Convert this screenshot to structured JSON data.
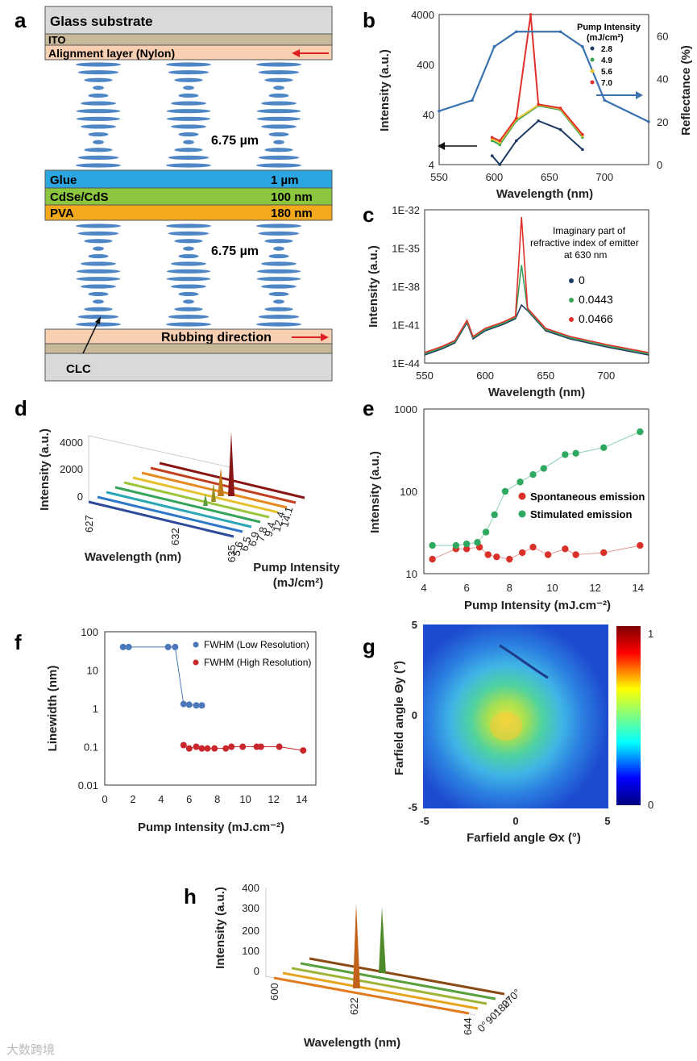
{
  "panels": {
    "a": {
      "label": "a",
      "layers": {
        "glass": "Glass substrate",
        "ito": "ITO",
        "align": "Alignment layer (Nylon)",
        "glue": "Glue",
        "glue_t": "1 µm",
        "cdse": "CdSe/CdS",
        "cdse_t": "100 nm",
        "pva": "PVA",
        "pva_t": "180 nm",
        "rub": "Rubbing direction",
        "clc": "CLC",
        "d1": "6.75 µm",
        "d2": "6.75 µm"
      }
    },
    "b": {
      "label": "b",
      "ylabel": "Intensity (a.u.)",
      "ylabel2": "Reflectance (%)",
      "xlabel": "Wavelength (nm)",
      "legend_title": "Pump Intensity",
      "legend_unit": "(mJ/cm²)",
      "legend": [
        "2.8",
        "4.9",
        "5.6",
        "7.0"
      ],
      "colors": [
        "#1f3b63",
        "#3aa35a",
        "#e6c12f",
        "#e0302a"
      ],
      "yticks": [
        "4000",
        "400",
        "40",
        "4"
      ],
      "y2ticks": [
        "60",
        "40",
        "20",
        "0"
      ],
      "xticks": [
        "550",
        "600",
        "650",
        "700"
      ]
    },
    "c": {
      "label": "c",
      "ylabel": "Intensity (a.u.)",
      "xlabel": "Wavelength (nm)",
      "note1": "Imaginary part of",
      "note2": "refractive index of emitter",
      "note3": "at 630 nm",
      "legend": [
        "0",
        "0.0443",
        "0.0466"
      ],
      "yticks": [
        "1E-32",
        "1E-35",
        "1E-38",
        "1E-41",
        "1E-44"
      ],
      "xticks": [
        "550",
        "600",
        "650",
        "700"
      ]
    },
    "d": {
      "label": "d",
      "ylabel": "Intensity (a.u.)",
      "xlabel": "Wavelength (nm)",
      "zlabel1": "Pump Intensity",
      "zlabel2": "(mJ/cm²)",
      "yticks": [
        "4000",
        "2000",
        "0"
      ],
      "xticks": [
        "627",
        "632",
        "635"
      ],
      "zticks": [
        "5.6",
        "6.5",
        "6.9",
        "7.8",
        "9.4",
        "12.4",
        "14.1"
      ]
    },
    "e": {
      "label": "e",
      "ylabel": "Intensity (a.u.)",
      "xlabel": "Pump Intensity (mJ.cm⁻²)",
      "legend": [
        "Spontaneous emission",
        "Stimulated emission"
      ],
      "yticks": [
        "1000",
        "100",
        "10"
      ],
      "xticks": [
        "4",
        "6",
        "8",
        "10",
        "12",
        "14"
      ]
    },
    "f": {
      "label": "f",
      "ylabel": "Linewidth (nm)",
      "xlabel": "Pump Intensity (mJ.cm⁻²)",
      "legend": [
        "FWHM (Low Resolution)",
        "FWHM (High Resolution)"
      ],
      "yticks": [
        "100",
        "10",
        "1",
        "0.1",
        "0.01"
      ],
      "xticks": [
        "0",
        "2",
        "4",
        "6",
        "8",
        "10",
        "12",
        "14"
      ]
    },
    "g": {
      "label": "g",
      "ylabel": "Farfield angle Θy (°)",
      "xlabel": "Farfield angle Θx (°)",
      "ticks": [
        "5",
        "0",
        "-5"
      ],
      "xticks": [
        "-5",
        "0",
        "5"
      ],
      "cbar": [
        "1",
        "0"
      ]
    },
    "h": {
      "label": "h",
      "ylabel": "Intensity (a.u.)",
      "xlabel": "Wavelength (nm)",
      "yticks": [
        "400",
        "300",
        "200",
        "100",
        "0"
      ],
      "xticks": [
        "600",
        "622",
        "644"
      ],
      "zticks": [
        "0°",
        "90°",
        "180°",
        "270°"
      ]
    }
  },
  "watermark": "大数跨境",
  "chart_data": [
    {
      "panel": "b",
      "type": "line",
      "title": "",
      "xlabel": "Wavelength (nm)",
      "ylabel": "Intensity (a.u.)",
      "xlim": [
        550,
        740
      ],
      "ylim": [
        4,
        4000
      ],
      "series": [
        {
          "name": "2.8",
          "x": [
            598,
            605,
            620,
            640,
            660,
            680
          ],
          "values": [
            6,
            4,
            12,
            30,
            20,
            8
          ]
        },
        {
          "name": "4.9",
          "x": [
            598,
            605,
            620,
            640,
            660,
            680
          ],
          "values": [
            12,
            10,
            30,
            60,
            50,
            14
          ]
        },
        {
          "name": "5.6",
          "x": [
            598,
            605,
            620,
            640,
            660,
            680
          ],
          "values": [
            13,
            11,
            32,
            62,
            52,
            15
          ]
        },
        {
          "name": "7.0",
          "x": [
            598,
            605,
            620,
            633,
            640,
            660,
            680
          ],
          "values": [
            14,
            12,
            34,
            4000,
            64,
            54,
            16
          ]
        },
        {
          "name": "Reflectance",
          "x": [
            550,
            580,
            600,
            620,
            660,
            680,
            700,
            740
          ],
          "values": [
            25,
            30,
            55,
            62,
            62,
            55,
            30,
            20
          ]
        }
      ]
    },
    {
      "panel": "e",
      "type": "scatter",
      "xlabel": "Pump Intensity (mJ.cm⁻²)",
      "ylabel": "Intensity (a.u.)",
      "ylim": [
        10,
        1000
      ],
      "series": [
        {
          "name": "Spontaneous emission",
          "x": [
            4.4,
            5.5,
            6.0,
            6.6,
            7.0,
            7.4,
            8.0,
            8.6,
            9.1,
            9.8,
            10.6,
            11.1,
            12.4,
            14.1
          ],
          "values": [
            15,
            20,
            20,
            21,
            17,
            16,
            15,
            18,
            21,
            17,
            20,
            17,
            18,
            22
          ]
        },
        {
          "name": "Stimulated emission",
          "x": [
            4.4,
            5.5,
            6.0,
            6.5,
            6.9,
            7.3,
            7.8,
            8.5,
            9.1,
            9.6,
            10.6,
            11.1,
            12.4,
            14.1
          ],
          "values": [
            22,
            22,
            23,
            24,
            32,
            52,
            100,
            130,
            160,
            190,
            280,
            290,
            340,
            530
          ]
        }
      ]
    },
    {
      "panel": "f",
      "type": "scatter",
      "xlabel": "Pump Intensity (mJ.cm⁻²)",
      "ylabel": "Linewidth (nm)",
      "ylim": [
        0.01,
        100
      ],
      "series": [
        {
          "name": "FWHM (Low Resolution)",
          "x": [
            1.3,
            1.7,
            4.5,
            5.0,
            5.6,
            6.0,
            6.5,
            6.9
          ],
          "values": [
            40,
            40,
            40,
            40,
            1.3,
            1.25,
            1.2,
            1.2
          ]
        },
        {
          "name": "FWHM (High Resolution)",
          "x": [
            5.6,
            6.0,
            6.5,
            6.9,
            7.3,
            7.8,
            8.6,
            9.0,
            9.8,
            10.8,
            11.1,
            12.4,
            14.1
          ],
          "values": [
            0.11,
            0.09,
            0.1,
            0.09,
            0.09,
            0.09,
            0.09,
            0.1,
            0.1,
            0.1,
            0.1,
            0.1,
            0.08
          ]
        }
      ]
    }
  ]
}
